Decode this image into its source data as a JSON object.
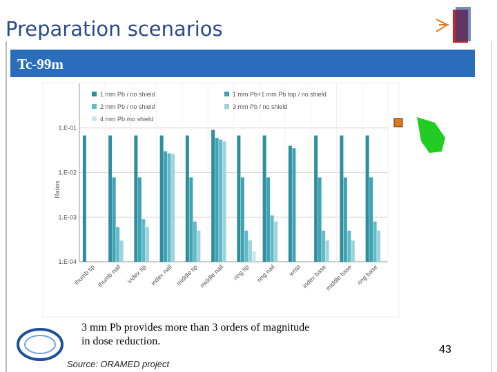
{
  "slide": {
    "title": "Preparation scenarios",
    "subtitle": "Tc-99m",
    "caption": "3 mm Pb provides more than 3 orders of magnitude in dose reduction.",
    "source": "Source: ORAMED project",
    "page_number": "43"
  },
  "chart_data": {
    "type": "bar",
    "y_label": "Ratios",
    "log_scale": true,
    "grid": true,
    "legend": "top",
    "categories": [
      "thumb tip",
      "thumb nail",
      "index tip",
      "index nail",
      "middle tip",
      "middle nail",
      "ring tip",
      "ring nail",
      "wrist",
      "index base",
      "middle base",
      "ring base"
    ],
    "series": [
      {
        "name": "1 mm Pb / no shield",
        "color": "#2f8e9e",
        "values": [
          0.068,
          0.068,
          0.068,
          0.068,
          0.068,
          0.09,
          0.068,
          0.068,
          0.04,
          0.068,
          0.068,
          0.068
        ]
      },
      {
        "name": "1 mm Pb+1 mm Pb top / no shield",
        "color": "#3fa3b3",
        "values": [
          null,
          0.0078,
          0.0078,
          0.03,
          0.0078,
          0.06,
          0.0078,
          0.0078,
          0.035,
          0.0078,
          0.0078,
          0.0078
        ]
      },
      {
        "name": "2 mm Pb / no shield",
        "color": "#62bac7",
        "values": [
          null,
          0.0006,
          0.0009,
          0.027,
          0.0008,
          0.055,
          0.0005,
          0.0011,
          null,
          0.0005,
          0.0005,
          0.0008
        ]
      },
      {
        "name": "3 mm Pb / no shield",
        "color": "#9dd3dc",
        "values": [
          null,
          0.0003,
          0.0006,
          0.026,
          0.0005,
          0.05,
          0.0003,
          0.0008,
          null,
          0.0003,
          0.0003,
          0.0005
        ]
      },
      {
        "name": "4 mm Pb  /no shield",
        "color": "#c6e7ec",
        "values": [
          null,
          null,
          null,
          null,
          null,
          null,
          0.00017,
          null,
          null,
          null,
          null,
          null
        ]
      }
    ],
    "ylim": [
      0.0001,
      1
    ],
    "yticks": [
      {
        "value": 0.0001,
        "label": "1.E-04"
      },
      {
        "value": 0.001,
        "label": "1.E-03"
      },
      {
        "value": 0.01,
        "label": "1.E-02"
      },
      {
        "value": 0.1,
        "label": "1.E-01"
      }
    ]
  }
}
